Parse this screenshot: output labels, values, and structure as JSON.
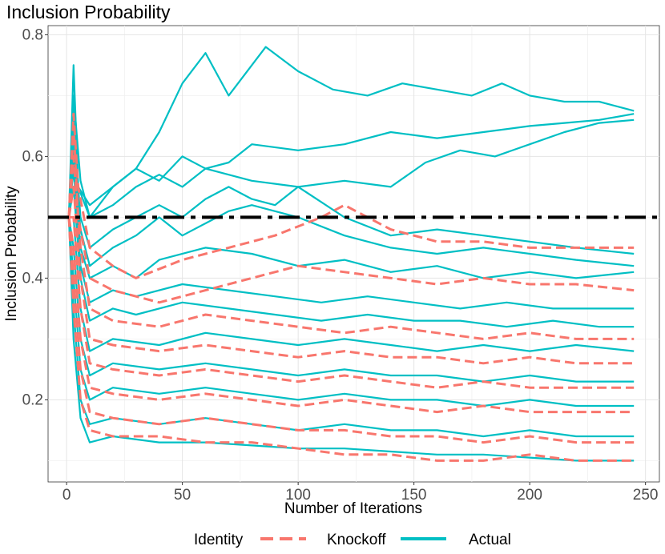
{
  "chart_data": {
    "type": "line",
    "title": "Inclusion Probability",
    "xlabel": "Number of Iterations",
    "ylabel": "Inclusion Probability",
    "xlim": [
      -8,
      256
    ],
    "ylim": [
      0.065,
      0.815
    ],
    "x_ticks": [
      0,
      50,
      100,
      150,
      200,
      250
    ],
    "y_ticks": [
      0.2,
      0.4,
      0.6,
      0.8
    ],
    "x_tick_labels": [
      "0",
      "50",
      "100",
      "150",
      "200",
      "250"
    ],
    "y_tick_labels": [
      "0.2",
      "0.4",
      "0.6",
      "0.8"
    ],
    "grid": true,
    "legend": {
      "position": "bottom",
      "title": "Identity",
      "entries": [
        {
          "label": "Knockoff",
          "color": "#F8766D",
          "dash": "dashed"
        },
        {
          "label": "Actual",
          "color": "#00BFC4",
          "dash": "solid"
        }
      ]
    },
    "reference_line": {
      "y": 0.5,
      "style": "dotdash",
      "color": "#000000"
    },
    "series_colors": {
      "Knockoff": "#F8766D",
      "Actual": "#00BFC4"
    },
    "series": [
      {
        "group": "Actual",
        "x": [
          1,
          3,
          5,
          10,
          20,
          30,
          40,
          50,
          60,
          70,
          86,
          100,
          115,
          130,
          145,
          160,
          175,
          188,
          200,
          215,
          230,
          245
        ],
        "y": [
          0.5,
          0.75,
          0.55,
          0.52,
          0.55,
          0.58,
          0.64,
          0.72,
          0.77,
          0.7,
          0.78,
          0.74,
          0.71,
          0.7,
          0.72,
          0.71,
          0.7,
          0.72,
          0.7,
          0.69,
          0.69,
          0.675
        ]
      },
      {
        "group": "Actual",
        "x": [
          1,
          3,
          5,
          10,
          20,
          30,
          40,
          50,
          60,
          70,
          80,
          100,
          120,
          140,
          160,
          180,
          200,
          215,
          230,
          245
        ],
        "y": [
          0.5,
          0.68,
          0.55,
          0.5,
          0.55,
          0.58,
          0.56,
          0.6,
          0.58,
          0.59,
          0.62,
          0.61,
          0.62,
          0.64,
          0.63,
          0.64,
          0.65,
          0.655,
          0.66,
          0.67
        ]
      },
      {
        "group": "Actual",
        "x": [
          1,
          3,
          6,
          10,
          20,
          30,
          40,
          50,
          60,
          80,
          100,
          120,
          140,
          155,
          170,
          185,
          200,
          215,
          230,
          245
        ],
        "y": [
          0.5,
          0.7,
          0.56,
          0.5,
          0.52,
          0.55,
          0.57,
          0.55,
          0.58,
          0.56,
          0.55,
          0.56,
          0.55,
          0.59,
          0.61,
          0.6,
          0.62,
          0.64,
          0.655,
          0.66
        ]
      },
      {
        "group": "Actual",
        "x": [
          1,
          3,
          6,
          10,
          20,
          30,
          40,
          50,
          60,
          70,
          80,
          90,
          100,
          120,
          140,
          160,
          180,
          200,
          220,
          245
        ],
        "y": [
          0.5,
          0.65,
          0.5,
          0.45,
          0.48,
          0.5,
          0.52,
          0.5,
          0.53,
          0.55,
          0.53,
          0.52,
          0.55,
          0.5,
          0.47,
          0.48,
          0.47,
          0.46,
          0.45,
          0.44
        ]
      },
      {
        "group": "Actual",
        "x": [
          1,
          3,
          6,
          10,
          20,
          30,
          40,
          50,
          60,
          70,
          80,
          100,
          120,
          140,
          160,
          180,
          200,
          220,
          245
        ],
        "y": [
          0.5,
          0.62,
          0.48,
          0.42,
          0.45,
          0.47,
          0.5,
          0.47,
          0.49,
          0.51,
          0.52,
          0.5,
          0.47,
          0.45,
          0.44,
          0.45,
          0.44,
          0.43,
          0.42
        ]
      },
      {
        "group": "Actual",
        "x": [
          1,
          3,
          6,
          10,
          20,
          30,
          40,
          60,
          80,
          100,
          120,
          140,
          160,
          180,
          200,
          220,
          245
        ],
        "y": [
          0.5,
          0.6,
          0.45,
          0.4,
          0.42,
          0.4,
          0.43,
          0.45,
          0.44,
          0.42,
          0.43,
          0.41,
          0.42,
          0.4,
          0.41,
          0.4,
          0.41
        ]
      },
      {
        "group": "Actual",
        "x": [
          1,
          3,
          6,
          10,
          20,
          30,
          50,
          70,
          90,
          110,
          130,
          150,
          170,
          190,
          210,
          230,
          245
        ],
        "y": [
          0.5,
          0.58,
          0.42,
          0.36,
          0.38,
          0.37,
          0.39,
          0.38,
          0.37,
          0.36,
          0.37,
          0.36,
          0.35,
          0.36,
          0.35,
          0.35,
          0.35
        ]
      },
      {
        "group": "Actual",
        "x": [
          1,
          3,
          6,
          10,
          20,
          30,
          50,
          70,
          90,
          110,
          130,
          150,
          170,
          190,
          210,
          230,
          245
        ],
        "y": [
          0.5,
          0.55,
          0.4,
          0.33,
          0.35,
          0.34,
          0.36,
          0.35,
          0.34,
          0.33,
          0.34,
          0.33,
          0.33,
          0.32,
          0.33,
          0.32,
          0.32
        ]
      },
      {
        "group": "Actual",
        "x": [
          1,
          3,
          6,
          10,
          20,
          40,
          60,
          80,
          100,
          120,
          140,
          160,
          180,
          200,
          220,
          245
        ],
        "y": [
          0.5,
          0.5,
          0.35,
          0.28,
          0.3,
          0.29,
          0.31,
          0.3,
          0.29,
          0.3,
          0.29,
          0.28,
          0.29,
          0.28,
          0.29,
          0.28
        ]
      },
      {
        "group": "Actual",
        "x": [
          1,
          3,
          6,
          10,
          20,
          40,
          60,
          80,
          100,
          120,
          140,
          160,
          180,
          200,
          220,
          245
        ],
        "y": [
          0.5,
          0.45,
          0.3,
          0.24,
          0.26,
          0.25,
          0.26,
          0.25,
          0.24,
          0.25,
          0.24,
          0.24,
          0.23,
          0.24,
          0.23,
          0.23
        ]
      },
      {
        "group": "Actual",
        "x": [
          1,
          3,
          6,
          10,
          20,
          40,
          60,
          80,
          100,
          120,
          140,
          160,
          180,
          200,
          220,
          245
        ],
        "y": [
          0.5,
          0.4,
          0.25,
          0.2,
          0.22,
          0.21,
          0.22,
          0.21,
          0.2,
          0.21,
          0.2,
          0.2,
          0.19,
          0.2,
          0.19,
          0.19
        ]
      },
      {
        "group": "Actual",
        "x": [
          1,
          3,
          6,
          10,
          20,
          40,
          60,
          80,
          100,
          120,
          140,
          160,
          180,
          200,
          220,
          245
        ],
        "y": [
          0.5,
          0.35,
          0.2,
          0.16,
          0.17,
          0.16,
          0.17,
          0.16,
          0.15,
          0.16,
          0.15,
          0.15,
          0.14,
          0.15,
          0.14,
          0.14
        ]
      },
      {
        "group": "Actual",
        "x": [
          1,
          3,
          6,
          10,
          20,
          40,
          60,
          80,
          100,
          120,
          140,
          160,
          180,
          200,
          220,
          245
        ],
        "y": [
          0.5,
          0.3,
          0.17,
          0.13,
          0.14,
          0.13,
          0.13,
          0.125,
          0.12,
          0.12,
          0.115,
          0.11,
          0.11,
          0.105,
          0.1,
          0.1
        ]
      },
      {
        "group": "Knockoff",
        "x": [
          1,
          3,
          5,
          10,
          20,
          30,
          50,
          70,
          90,
          110,
          120,
          130,
          140,
          160,
          180,
          200,
          220,
          245
        ],
        "y": [
          0.5,
          0.67,
          0.55,
          0.45,
          0.42,
          0.4,
          0.43,
          0.45,
          0.47,
          0.5,
          0.52,
          0.5,
          0.48,
          0.46,
          0.46,
          0.45,
          0.45,
          0.45
        ]
      },
      {
        "group": "Knockoff",
        "x": [
          1,
          3,
          5,
          10,
          20,
          40,
          60,
          80,
          100,
          120,
          140,
          160,
          180,
          200,
          220,
          245
        ],
        "y": [
          0.5,
          0.65,
          0.5,
          0.4,
          0.38,
          0.36,
          0.38,
          0.4,
          0.42,
          0.41,
          0.4,
          0.39,
          0.4,
          0.39,
          0.39,
          0.38
        ]
      },
      {
        "group": "Knockoff",
        "x": [
          1,
          3,
          6,
          10,
          20,
          40,
          60,
          80,
          100,
          120,
          140,
          160,
          180,
          200,
          220,
          245
        ],
        "y": [
          0.5,
          0.6,
          0.45,
          0.35,
          0.33,
          0.32,
          0.34,
          0.33,
          0.32,
          0.31,
          0.32,
          0.31,
          0.3,
          0.31,
          0.3,
          0.3
        ]
      },
      {
        "group": "Knockoff",
        "x": [
          1,
          3,
          6,
          10,
          20,
          40,
          60,
          80,
          100,
          120,
          140,
          160,
          180,
          200,
          220,
          245
        ],
        "y": [
          0.5,
          0.55,
          0.4,
          0.3,
          0.29,
          0.28,
          0.29,
          0.28,
          0.27,
          0.28,
          0.27,
          0.27,
          0.26,
          0.27,
          0.26,
          0.26
        ]
      },
      {
        "group": "Knockoff",
        "x": [
          1,
          3,
          6,
          10,
          20,
          40,
          60,
          80,
          100,
          120,
          140,
          160,
          180,
          200,
          220,
          245
        ],
        "y": [
          0.5,
          0.5,
          0.35,
          0.26,
          0.25,
          0.24,
          0.25,
          0.24,
          0.23,
          0.24,
          0.23,
          0.22,
          0.23,
          0.22,
          0.22,
          0.22
        ]
      },
      {
        "group": "Knockoff",
        "x": [
          1,
          3,
          6,
          10,
          20,
          40,
          60,
          80,
          100,
          120,
          140,
          160,
          180,
          200,
          220,
          245
        ],
        "y": [
          0.5,
          0.45,
          0.3,
          0.22,
          0.21,
          0.2,
          0.21,
          0.2,
          0.19,
          0.2,
          0.19,
          0.18,
          0.19,
          0.18,
          0.18,
          0.18
        ]
      },
      {
        "group": "Knockoff",
        "x": [
          1,
          3,
          6,
          10,
          20,
          40,
          60,
          80,
          100,
          120,
          140,
          160,
          180,
          200,
          220,
          245
        ],
        "y": [
          0.5,
          0.4,
          0.25,
          0.18,
          0.17,
          0.16,
          0.17,
          0.16,
          0.15,
          0.15,
          0.14,
          0.14,
          0.13,
          0.14,
          0.13,
          0.13
        ]
      },
      {
        "group": "Knockoff",
        "x": [
          1,
          3,
          6,
          10,
          20,
          40,
          60,
          80,
          100,
          120,
          140,
          160,
          180,
          200,
          220,
          245
        ],
        "y": [
          0.5,
          0.35,
          0.2,
          0.15,
          0.14,
          0.14,
          0.13,
          0.13,
          0.12,
          0.11,
          0.11,
          0.1,
          0.1,
          0.11,
          0.1,
          0.1
        ]
      }
    ]
  }
}
